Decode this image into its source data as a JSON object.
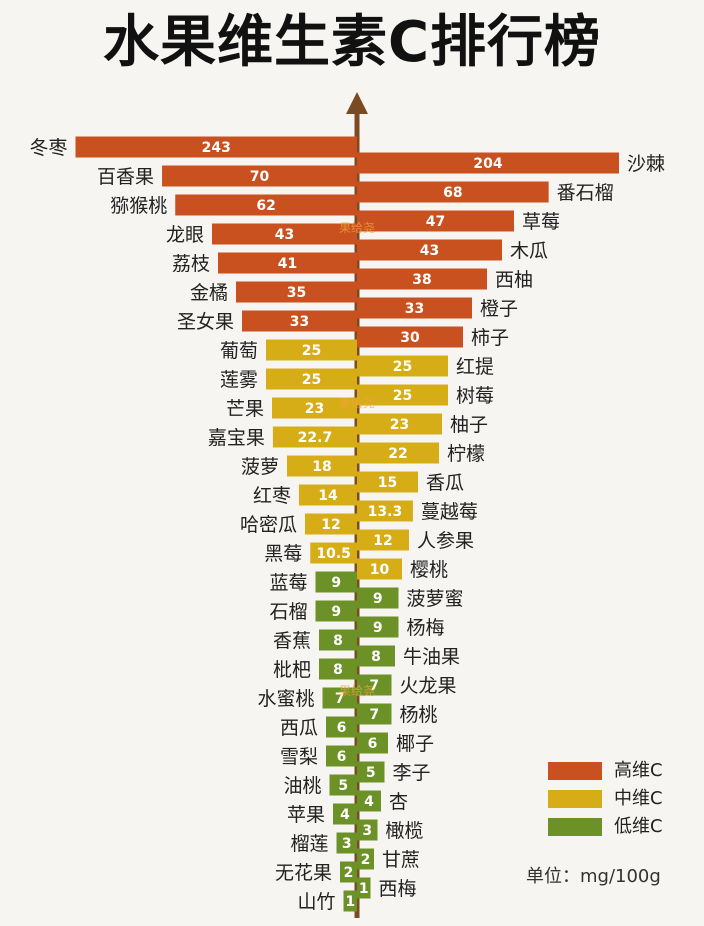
{
  "title": "水果维生素C排行榜",
  "unit_label": "单位：",
  "unit_value": "mg/100g",
  "watermark": "果给尧",
  "colors": {
    "high": "#c9501f",
    "mid": "#d7ad17",
    "low": "#6c9126",
    "axis": "#7a4a22",
    "bar_text": "#ffffff",
    "label_text": "#222222"
  },
  "legend": [
    {
      "label": "高维C",
      "level": "high"
    },
    {
      "label": "中维C",
      "level": "mid"
    },
    {
      "label": "低维C",
      "level": "low"
    }
  ],
  "chart_data": {
    "type": "bar",
    "unit": "mg/100g",
    "series": [
      {
        "side": "left",
        "points": [
          {
            "fruit": "冬枣",
            "value": 243,
            "level": "high"
          },
          {
            "fruit": "百香果",
            "value": 70,
            "level": "high"
          },
          {
            "fruit": "猕猴桃",
            "value": 62,
            "level": "high"
          },
          {
            "fruit": "龙眼",
            "value": 43,
            "level": "high"
          },
          {
            "fruit": "荔枝",
            "value": 41,
            "level": "high"
          },
          {
            "fruit": "金橘",
            "value": 35,
            "level": "high"
          },
          {
            "fruit": "圣女果",
            "value": 33,
            "level": "high"
          },
          {
            "fruit": "葡萄",
            "value": 25,
            "level": "mid"
          },
          {
            "fruit": "莲雾",
            "value": 25,
            "level": "mid"
          },
          {
            "fruit": "芒果",
            "value": 23,
            "level": "mid"
          },
          {
            "fruit": "嘉宝果",
            "value": 22.7,
            "level": "mid"
          },
          {
            "fruit": "菠萝",
            "value": 18,
            "level": "mid"
          },
          {
            "fruit": "红枣",
            "value": 14,
            "level": "mid"
          },
          {
            "fruit": "哈密瓜",
            "value": 12,
            "level": "mid"
          },
          {
            "fruit": "黑莓",
            "value": 10.5,
            "level": "mid"
          },
          {
            "fruit": "蓝莓",
            "value": 9,
            "level": "low"
          },
          {
            "fruit": "石榴",
            "value": 9,
            "level": "low"
          },
          {
            "fruit": "香蕉",
            "value": 8,
            "level": "low"
          },
          {
            "fruit": "枇杷",
            "value": 8,
            "level": "low"
          },
          {
            "fruit": "水蜜桃",
            "value": 7,
            "level": "low"
          },
          {
            "fruit": "西瓜",
            "value": 6,
            "level": "low"
          },
          {
            "fruit": "雪梨",
            "value": 6,
            "level": "low"
          },
          {
            "fruit": "油桃",
            "value": 5,
            "level": "low"
          },
          {
            "fruit": "苹果",
            "value": 4,
            "level": "low"
          },
          {
            "fruit": "榴莲",
            "value": 3,
            "level": "low"
          },
          {
            "fruit": "无花果",
            "value": 2,
            "level": "low"
          },
          {
            "fruit": "山竹",
            "value": 1,
            "level": "low"
          }
        ]
      },
      {
        "side": "right",
        "points": [
          {
            "fruit": "沙棘",
            "value": 204,
            "level": "high"
          },
          {
            "fruit": "番石榴",
            "value": 68,
            "level": "high"
          },
          {
            "fruit": "草莓",
            "value": 47,
            "level": "high"
          },
          {
            "fruit": "木瓜",
            "value": 43,
            "level": "high"
          },
          {
            "fruit": "西柚",
            "value": 38,
            "level": "high"
          },
          {
            "fruit": "橙子",
            "value": 33,
            "level": "high"
          },
          {
            "fruit": "柿子",
            "value": 30,
            "level": "high"
          },
          {
            "fruit": "红提",
            "value": 25,
            "level": "mid"
          },
          {
            "fruit": "树莓",
            "value": 25,
            "level": "mid"
          },
          {
            "fruit": "柚子",
            "value": 23,
            "level": "mid"
          },
          {
            "fruit": "柠檬",
            "value": 22,
            "level": "mid"
          },
          {
            "fruit": "香瓜",
            "value": 15,
            "level": "mid"
          },
          {
            "fruit": "蔓越莓",
            "value": 13.3,
            "level": "mid"
          },
          {
            "fruit": "人参果",
            "value": 12,
            "level": "mid"
          },
          {
            "fruit": "樱桃",
            "value": 10,
            "level": "mid"
          },
          {
            "fruit": "菠萝蜜",
            "value": 9,
            "level": "low"
          },
          {
            "fruit": "杨梅",
            "value": 9,
            "level": "low"
          },
          {
            "fruit": "牛油果",
            "value": 8,
            "level": "low"
          },
          {
            "fruit": "火龙果",
            "value": 7,
            "level": "low"
          },
          {
            "fruit": "杨桃",
            "value": 7,
            "level": "low"
          },
          {
            "fruit": "椰子",
            "value": 6,
            "level": "low"
          },
          {
            "fruit": "李子",
            "value": 5,
            "level": "low"
          },
          {
            "fruit": "杏",
            "value": 4,
            "level": "low"
          },
          {
            "fruit": "橄榄",
            "value": 3,
            "level": "low"
          },
          {
            "fruit": "甘蔗",
            "value": 2,
            "level": "low"
          },
          {
            "fruit": "西梅",
            "value": 1,
            "level": "low"
          }
        ]
      }
    ]
  }
}
